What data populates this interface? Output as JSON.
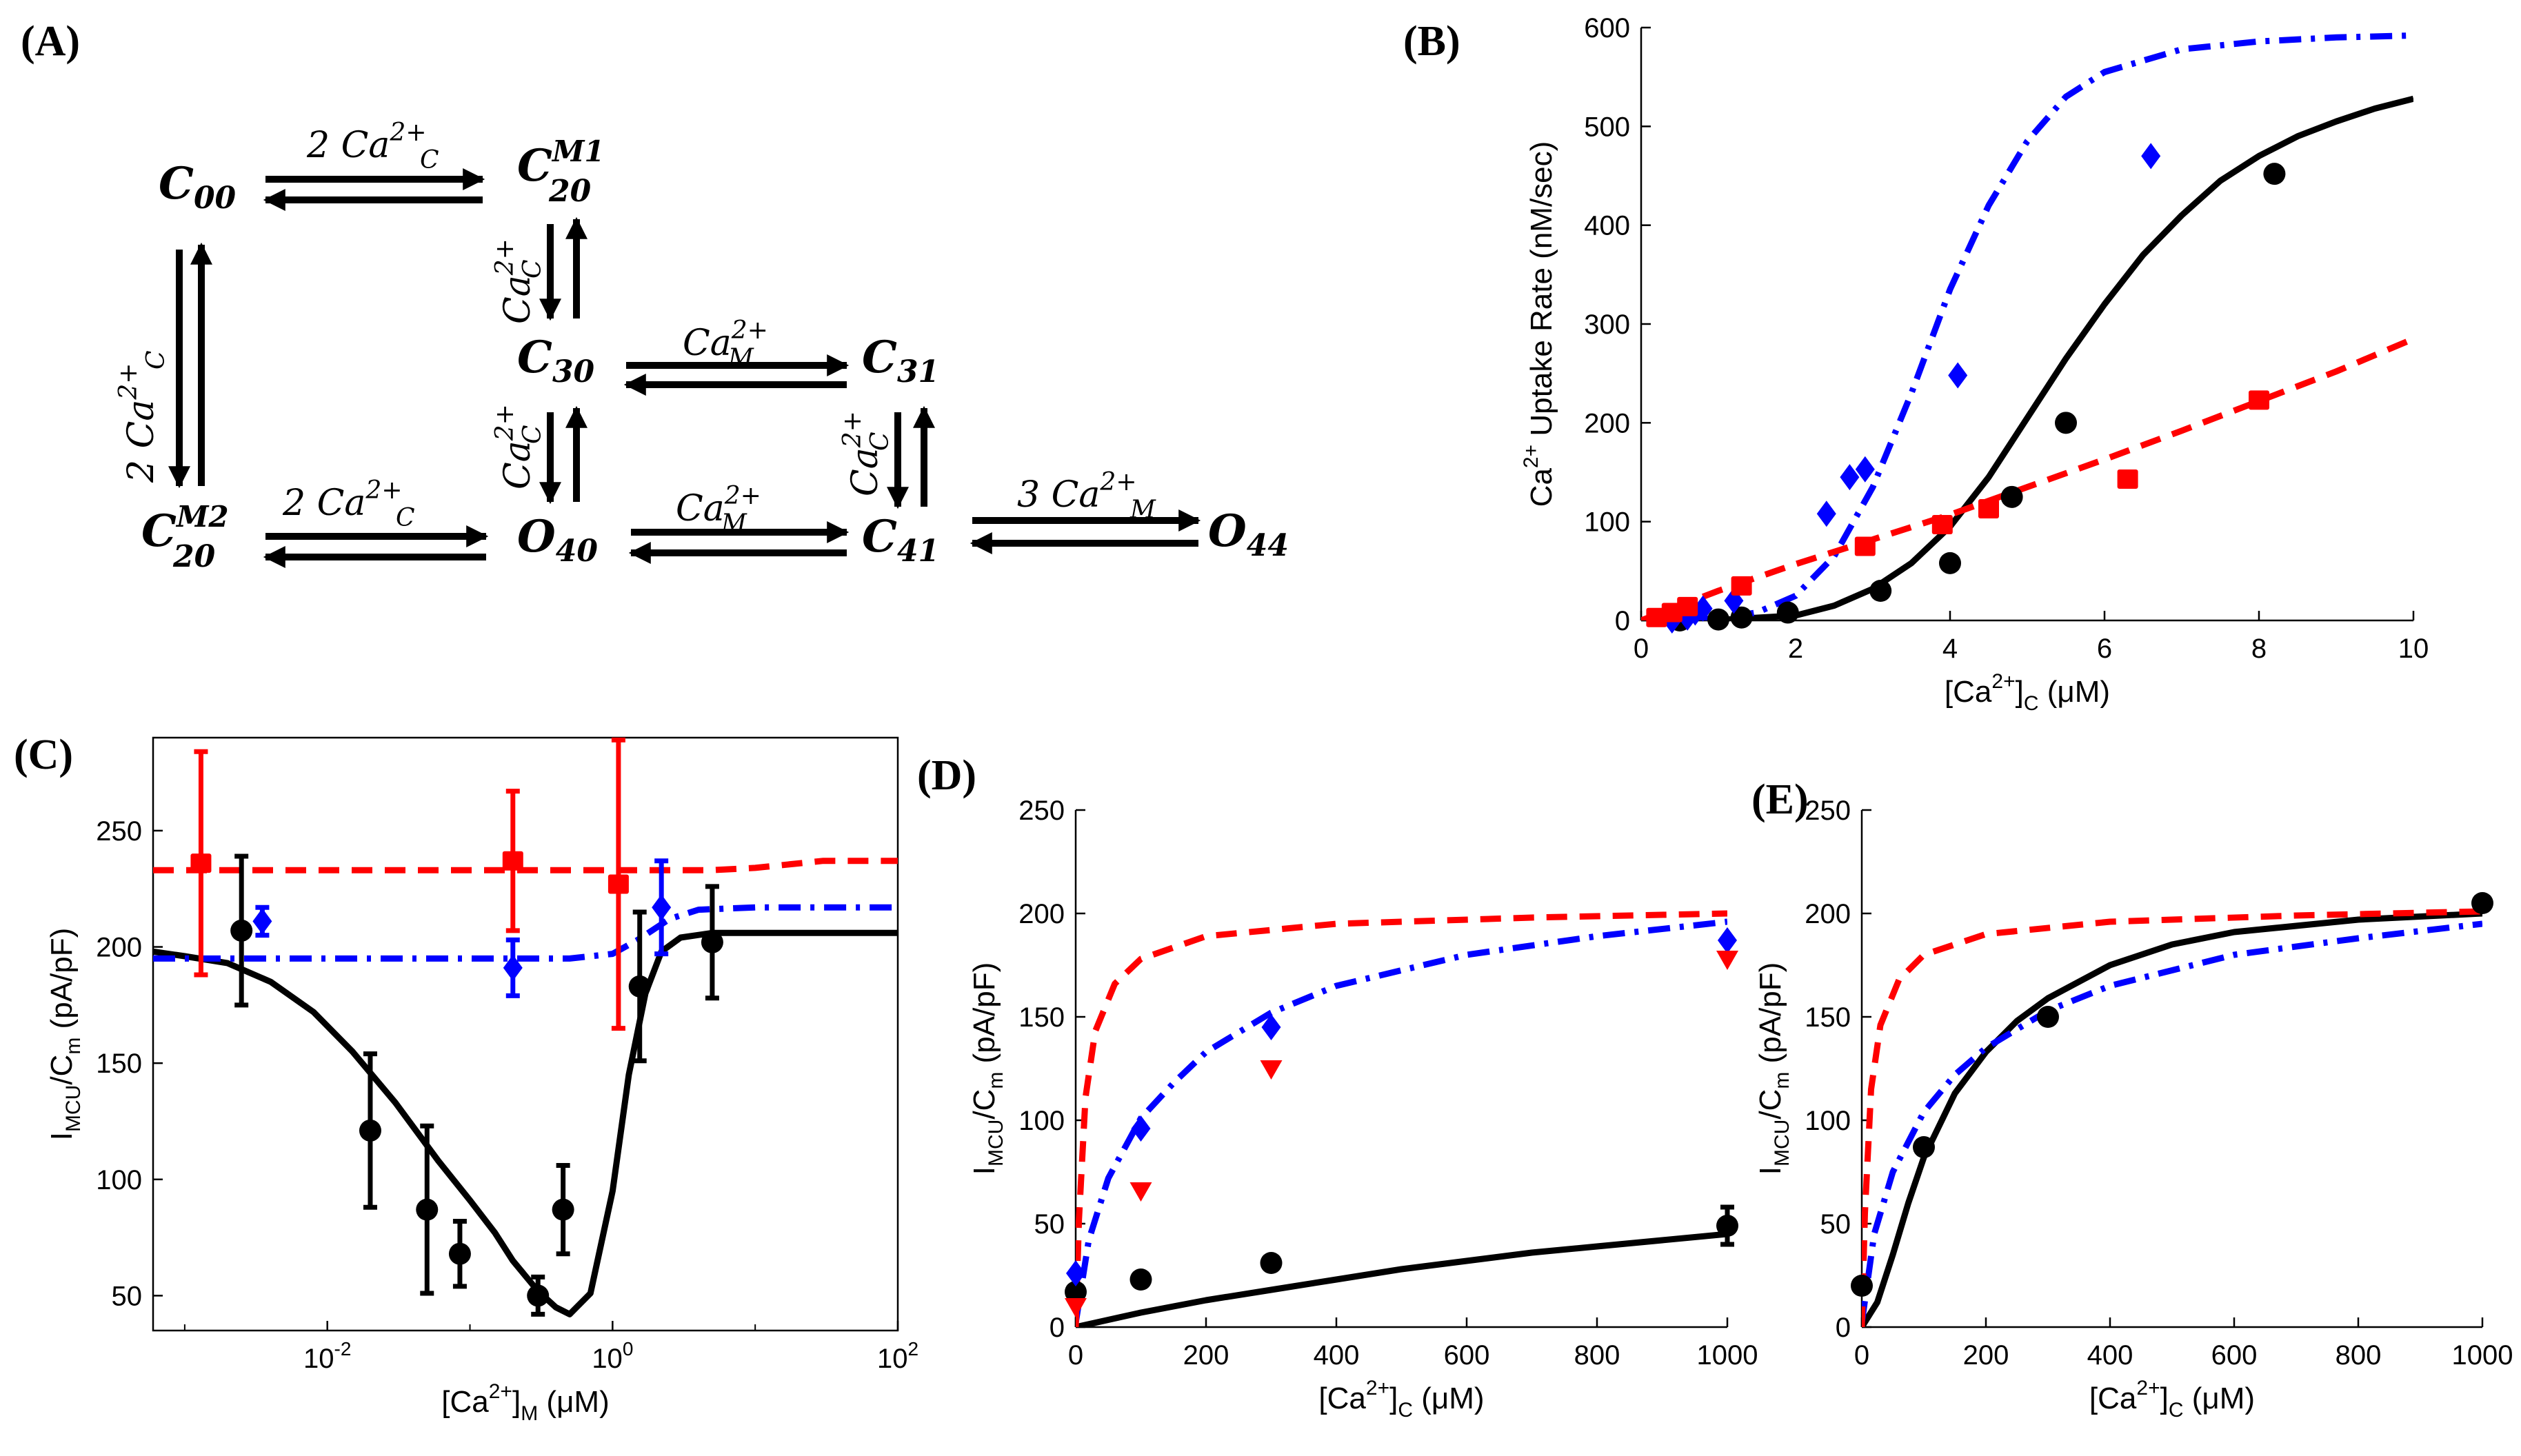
{
  "panel_labels": {
    "A": "(A)",
    "B": "(B)",
    "C": "(C)",
    "D": "(D)",
    "E": "(E)"
  },
  "scheme": {
    "states": {
      "C00": {
        "base": "C",
        "sub": "00",
        "sup": ""
      },
      "C20M1": {
        "base": "C",
        "sub": "20",
        "sup": "M1"
      },
      "C30": {
        "base": "C",
        "sub": "30",
        "sup": ""
      },
      "C31": {
        "base": "C",
        "sub": "31",
        "sup": ""
      },
      "C20M2": {
        "base": "C",
        "sub": "20",
        "sup": "M2"
      },
      "O40": {
        "base": "O",
        "sub": "40",
        "sup": ""
      },
      "C41": {
        "base": "C",
        "sub": "41",
        "sup": ""
      },
      "O44": {
        "base": "O",
        "sub": "44",
        "sup": ""
      }
    },
    "rates": {
      "top": {
        "coef": "2 ",
        "base": "Ca",
        "sub": "C",
        "sup": "2+"
      },
      "left": {
        "coef": "2 ",
        "base": "Ca",
        "sub": "C",
        "sup": "2+"
      },
      "mid_v1": {
        "coef": "",
        "base": "Ca",
        "sub": "C",
        "sup": "2+"
      },
      "mid_h1": {
        "coef": "",
        "base": "Ca",
        "sub": "M",
        "sup": "2+"
      },
      "bottom_left": {
        "coef": "2 ",
        "base": "Ca",
        "sub": "C",
        "sup": "2+"
      },
      "mid_v2": {
        "coef": "",
        "base": "Ca",
        "sub": "C",
        "sup": "2+"
      },
      "mid_h2": {
        "coef": "",
        "base": "Ca",
        "sub": "M",
        "sup": "2+"
      },
      "right_v": {
        "coef": "",
        "base": "Ca",
        "sub": "C",
        "sup": "2+"
      },
      "right_h": {
        "coef": "3 ",
        "base": "Ca",
        "sub": "M",
        "sup": "2+"
      }
    }
  },
  "colors": {
    "black": "#000000",
    "blue": "#0000ff",
    "red": "#ff0000"
  },
  "chart_data": [
    {
      "panel": "B",
      "type": "line",
      "xlabel": {
        "pre": "[Ca",
        "sup": "2+",
        "post": "]",
        "sub": "C",
        "unit": " (μM)"
      },
      "ylabel": {
        "pre": "Ca",
        "sup": "2+",
        "post": " Uptake Rate (nM/sec)"
      },
      "xlim": [
        0,
        10
      ],
      "ylim": [
        0,
        600
      ],
      "xticks": [
        0,
        2,
        4,
        6,
        8,
        10
      ],
      "yticks": [
        0,
        100,
        200,
        300,
        400,
        500,
        600
      ],
      "curves": [
        {
          "name": "black-model",
          "color": "#000000",
          "style": "solid",
          "x": [
            0,
            1,
            2,
            2.5,
            3,
            3.5,
            4,
            4.5,
            5,
            5.5,
            6,
            6.5,
            7,
            7.5,
            8,
            8.5,
            9,
            9.5,
            10
          ],
          "y": [
            0,
            0.5,
            5,
            15,
            32,
            58,
            95,
            145,
            205,
            265,
            320,
            370,
            410,
            445,
            470,
            490,
            505,
            518,
            528
          ]
        },
        {
          "name": "blue-model",
          "color": "#0000ff",
          "style": "dashdot",
          "x": [
            0,
            1,
            1.5,
            2,
            2.5,
            3,
            3.5,
            4,
            4.5,
            5,
            5.5,
            6,
            7,
            8,
            9,
            10
          ],
          "y": [
            0,
            2,
            8,
            25,
            65,
            135,
            230,
            335,
            420,
            485,
            530,
            555,
            578,
            586,
            590,
            592
          ]
        },
        {
          "name": "red-model",
          "color": "#ff0000",
          "style": "dashed",
          "x": [
            0,
            1,
            2,
            3,
            4,
            5,
            6,
            7,
            8,
            9,
            10
          ],
          "y": [
            0,
            30,
            57,
            82,
            107,
            135,
            163,
            192,
            222,
            252,
            285
          ]
        }
      ],
      "points": [
        {
          "name": "black-data",
          "color": "#000000",
          "marker": "circle",
          "x": [
            0.5,
            1.0,
            1.3,
            1.9,
            3.1,
            4.0,
            4.8,
            5.5,
            8.2
          ],
          "y": [
            0,
            1,
            3,
            8,
            30,
            58,
            125,
            200,
            452
          ]
        },
        {
          "name": "blue-data",
          "color": "#0000ff",
          "marker": "diamond",
          "x": [
            0.4,
            0.6,
            0.7,
            0.8,
            1.2,
            2.4,
            2.7,
            2.9,
            4.1,
            6.6
          ],
          "y": [
            0,
            3,
            8,
            12,
            20,
            108,
            145,
            153,
            248,
            470
          ]
        },
        {
          "name": "red-data",
          "color": "#ff0000",
          "marker": "square",
          "x": [
            0.2,
            0.4,
            0.6,
            1.3,
            2.9,
            3.9,
            4.5,
            6.3,
            8.0
          ],
          "y": [
            3,
            8,
            14,
            35,
            75,
            97,
            113,
            143,
            223
          ]
        }
      ]
    },
    {
      "panel": "C",
      "type": "line",
      "xscale": "log",
      "xlabel": {
        "pre": "[Ca",
        "sup": "2+",
        "post": "]",
        "sub": "M",
        "unit": " (μM)"
      },
      "ylabel": {
        "pre": "I",
        "sub": "MCU",
        "post": "/C",
        "sub2": "m",
        "unit": " (pA/pF)"
      },
      "xlim": [
        0.0006,
        100
      ],
      "ylim": [
        35,
        290
      ],
      "xticks": [
        0.01,
        1,
        100
      ],
      "xticklabels": [
        {
          "b": "10",
          "e": "-2"
        },
        {
          "b": "10",
          "e": "0"
        },
        {
          "b": "10",
          "e": "2"
        }
      ],
      "yticks": [
        50,
        100,
        150,
        200,
        250
      ],
      "curves": [
        {
          "name": "black-model",
          "color": "#000000",
          "style": "solid",
          "x": [
            0.0006,
            0.001,
            0.002,
            0.004,
            0.008,
            0.015,
            0.03,
            0.06,
            0.1,
            0.15,
            0.2,
            0.3,
            0.4,
            0.5,
            0.7,
            1,
            1.3,
            1.7,
            2.2,
            3,
            5,
            10,
            30,
            100
          ],
          "y": [
            198,
            196,
            193,
            185,
            172,
            155,
            133,
            108,
            91,
            77,
            65,
            52,
            45,
            42,
            51,
            95,
            145,
            180,
            198,
            204,
            206,
            206,
            206,
            206
          ]
        },
        {
          "name": "blue-model",
          "color": "#0000ff",
          "style": "dashdot",
          "x": [
            0.0006,
            0.01,
            0.1,
            0.5,
            1,
            1.5,
            2.5,
            4,
            10,
            100
          ],
          "y": [
            195,
            195,
            195,
            195,
            197,
            203,
            212,
            216,
            217,
            217
          ]
        },
        {
          "name": "red-model",
          "color": "#ff0000",
          "style": "dashed",
          "x": [
            0.0006,
            0.01,
            0.1,
            1,
            5,
            10,
            30,
            100
          ],
          "y": [
            233,
            233,
            233,
            233,
            233,
            234,
            237,
            237
          ]
        }
      ],
      "points": [
        {
          "name": "black-data",
          "color": "#000000",
          "marker": "circle",
          "x": [
            0.0025,
            0.02,
            0.05,
            0.085,
            0.3,
            0.45,
            1.55,
            5.0
          ],
          "y": [
            207,
            121,
            87,
            68,
            50,
            87,
            183,
            202
          ],
          "err": [
            32,
            33,
            36,
            14,
            8,
            19,
            32,
            24
          ]
        },
        {
          "name": "blue-data",
          "color": "#0000ff",
          "marker": "diamond",
          "x": [
            0.0035,
            0.2,
            2.2
          ],
          "y": [
            211,
            191,
            217
          ],
          "err": [
            6,
            12,
            20
          ]
        },
        {
          "name": "red-data",
          "color": "#ff0000",
          "marker": "square",
          "x": [
            0.0013,
            0.2,
            1.1
          ],
          "y": [
            236,
            237,
            227
          ],
          "err": [
            48,
            30,
            62
          ]
        }
      ]
    },
    {
      "panel": "D",
      "type": "line",
      "xlabel": {
        "pre": "[Ca",
        "sup": "2+",
        "post": "]",
        "sub": "C",
        "unit": " (μM)"
      },
      "ylabel": {
        "pre": "I",
        "sub": "MCU",
        "post": "/C",
        "sub2": "m",
        "unit": " (pA/pF)"
      },
      "xlim": [
        0,
        1000
      ],
      "ylim": [
        0,
        250
      ],
      "xticks": [
        0,
        200,
        400,
        600,
        800,
        1000
      ],
      "yticks": [
        0,
        50,
        100,
        150,
        200,
        250
      ],
      "curves": [
        {
          "name": "black-model",
          "color": "#000000",
          "style": "solid",
          "x": [
            0,
            100,
            200,
            300,
            400,
            500,
            600,
            700,
            800,
            900,
            1000
          ],
          "y": [
            0,
            7,
            13,
            18,
            23,
            28,
            32,
            36,
            39,
            42,
            45
          ]
        },
        {
          "name": "blue-model",
          "color": "#0000ff",
          "style": "dashdot",
          "x": [
            0,
            20,
            50,
            100,
            150,
            200,
            300,
            400,
            600,
            800,
            1000
          ],
          "y": [
            2,
            42,
            72,
            101,
            118,
            133,
            152,
            165,
            180,
            189,
            196
          ]
        },
        {
          "name": "red-model",
          "color": "#ff0000",
          "style": "dashed",
          "x": [
            0,
            5,
            15,
            30,
            60,
            100,
            200,
            400,
            700,
            1000
          ],
          "y": [
            0,
            52,
            111,
            143,
            166,
            178,
            189,
            195,
            198,
            200
          ]
        }
      ],
      "points": [
        {
          "name": "black-data",
          "color": "#000000",
          "marker": "circle",
          "x": [
            0,
            100,
            300,
            1000
          ],
          "y": [
            17,
            23,
            31,
            49
          ],
          "err": [
            0,
            0,
            0,
            9
          ]
        },
        {
          "name": "blue-data",
          "color": "#0000ff",
          "marker": "diamond",
          "x": [
            0,
            100,
            300,
            1000
          ],
          "y": [
            26,
            96,
            145,
            187
          ]
        },
        {
          "name": "red-data",
          "color": "#ff0000",
          "marker": "triangle-down",
          "x": [
            0,
            100,
            300,
            1000
          ],
          "y": [
            10,
            66,
            125,
            178
          ]
        }
      ]
    },
    {
      "panel": "E",
      "type": "line",
      "xlabel": {
        "pre": "[Ca",
        "sup": "2+",
        "post": "]",
        "sub": "C",
        "unit": " (μM)"
      },
      "ylabel": {
        "pre": "I",
        "sub": "MCU",
        "post": "/C",
        "sub2": "m",
        "unit": " (pA/pF)"
      },
      "xlim": [
        0,
        1000
      ],
      "ylim": [
        0,
        250
      ],
      "xticks": [
        0,
        200,
        400,
        600,
        800,
        1000
      ],
      "yticks": [
        0,
        50,
        100,
        150,
        200,
        250
      ],
      "curves": [
        {
          "name": "black-model",
          "color": "#000000",
          "style": "solid",
          "x": [
            0,
            25,
            50,
            75,
            100,
            150,
            200,
            250,
            300,
            400,
            500,
            600,
            800,
            1000
          ],
          "y": [
            0,
            12,
            35,
            60,
            82,
            113,
            133,
            148,
            159,
            175,
            185,
            191,
            197,
            200
          ]
        },
        {
          "name": "blue-model",
          "color": "#0000ff",
          "style": "dashdot",
          "x": [
            0,
            20,
            50,
            100,
            150,
            200,
            300,
            400,
            600,
            800,
            1000
          ],
          "y": [
            2,
            45,
            75,
            104,
            122,
            135,
            153,
            165,
            180,
            188,
            195
          ]
        },
        {
          "name": "red-model",
          "color": "#ff0000",
          "style": "dashed",
          "x": [
            0,
            5,
            15,
            30,
            60,
            100,
            200,
            400,
            700,
            1000
          ],
          "y": [
            0,
            55,
            115,
            146,
            168,
            180,
            190,
            196,
            199,
            201
          ]
        }
      ],
      "points": [
        {
          "name": "black-data",
          "color": "#000000",
          "marker": "circle",
          "x": [
            0,
            100,
            300,
            1000
          ],
          "y": [
            20,
            87,
            150,
            205
          ]
        }
      ]
    }
  ]
}
